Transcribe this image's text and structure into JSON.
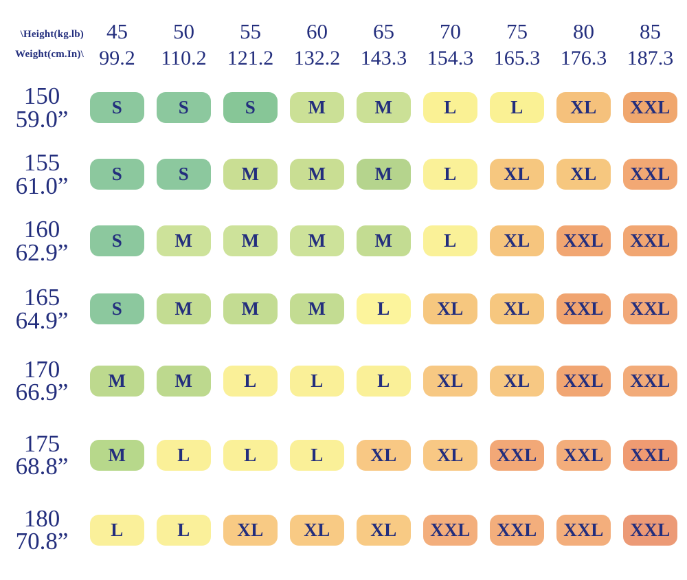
{
  "corner": {
    "line1": "\\Height(kg.lb)",
    "line2": "Weight(cm.In)\\"
  },
  "columns": [
    {
      "kg": "45",
      "lb": "99.2"
    },
    {
      "kg": "50",
      "lb": "110.2"
    },
    {
      "kg": "55",
      "lb": "121.2"
    },
    {
      "kg": "60",
      "lb": "132.2"
    },
    {
      "kg": "65",
      "lb": "143.3"
    },
    {
      "kg": "70",
      "lb": "154.3"
    },
    {
      "kg": "75",
      "lb": "165.3"
    },
    {
      "kg": "80",
      "lb": "176.3"
    },
    {
      "kg": "85",
      "lb": "187.3"
    }
  ],
  "rows": [
    {
      "cm": "150",
      "inch": "59.0”",
      "cells": [
        {
          "label": "S",
          "color": "#8cc89e"
        },
        {
          "label": "S",
          "color": "#8cc89e"
        },
        {
          "label": "S",
          "color": "#87c697"
        },
        {
          "label": "M",
          "color": "#cbe096"
        },
        {
          "label": "M",
          "color": "#cbe096"
        },
        {
          "label": "L",
          "color": "#faf194"
        },
        {
          "label": "L",
          "color": "#faf194"
        },
        {
          "label": "XL",
          "color": "#f5c17c"
        },
        {
          "label": "XXL",
          "color": "#f0a76e"
        }
      ]
    },
    {
      "cm": "155",
      "inch": "61.0”",
      "cells": [
        {
          "label": "S",
          "color": "#8cc89e"
        },
        {
          "label": "S",
          "color": "#8cc89e"
        },
        {
          "label": "M",
          "color": "#c9de93"
        },
        {
          "label": "M",
          "color": "#c9de93"
        },
        {
          "label": "M",
          "color": "#b5d48d"
        },
        {
          "label": "L",
          "color": "#faf198"
        },
        {
          "label": "XL",
          "color": "#f6c77f"
        },
        {
          "label": "XL",
          "color": "#f6c77f"
        },
        {
          "label": "XXL",
          "color": "#f2a874"
        }
      ]
    },
    {
      "cm": "160",
      "inch": "62.9”",
      "cells": [
        {
          "label": "S",
          "color": "#8cc89e"
        },
        {
          "label": "M",
          "color": "#cde29a"
        },
        {
          "label": "M",
          "color": "#cde29a"
        },
        {
          "label": "M",
          "color": "#cde29a"
        },
        {
          "label": "M",
          "color": "#c3dc92"
        },
        {
          "label": "L",
          "color": "#faf198"
        },
        {
          "label": "XL",
          "color": "#f6c57e"
        },
        {
          "label": "XXL",
          "color": "#f1a672"
        },
        {
          "label": "XXL",
          "color": "#f1a672"
        }
      ]
    },
    {
      "cm": "165",
      "inch": "64.9”",
      "cells": [
        {
          "label": "S",
          "color": "#8cc89e"
        },
        {
          "label": "M",
          "color": "#c3dc92"
        },
        {
          "label": "M",
          "color": "#c3dc92"
        },
        {
          "label": "M",
          "color": "#c3dc92"
        },
        {
          "label": "L",
          "color": "#fcf49c"
        },
        {
          "label": "XL",
          "color": "#f6c77f"
        },
        {
          "label": "XL",
          "color": "#f6c77f"
        },
        {
          "label": "XXL",
          "color": "#f0a470"
        },
        {
          "label": "XXL",
          "color": "#f2a979"
        }
      ]
    },
    {
      "cm": "170",
      "inch": "66.9”",
      "cells": [
        {
          "label": "M",
          "color": "#bdd98e"
        },
        {
          "label": "M",
          "color": "#bdd98e"
        },
        {
          "label": "L",
          "color": "#faf098"
        },
        {
          "label": "L",
          "color": "#faf098"
        },
        {
          "label": "L",
          "color": "#faf098"
        },
        {
          "label": "XL",
          "color": "#f7c883"
        },
        {
          "label": "XL",
          "color": "#f7c883"
        },
        {
          "label": "XXL",
          "color": "#f1a673"
        },
        {
          "label": "XXL",
          "color": "#f2ab79"
        }
      ]
    },
    {
      "cm": "175",
      "inch": "68.8”",
      "cells": [
        {
          "label": "M",
          "color": "#b7d88b"
        },
        {
          "label": "L",
          "color": "#faf098"
        },
        {
          "label": "L",
          "color": "#faf098"
        },
        {
          "label": "L",
          "color": "#faf098"
        },
        {
          "label": "XL",
          "color": "#f8c884"
        },
        {
          "label": "XL",
          "color": "#f8c884"
        },
        {
          "label": "XXL",
          "color": "#f2a877"
        },
        {
          "label": "XXL",
          "color": "#f3ad7b"
        },
        {
          "label": "XXL",
          "color": "#ef9b72"
        }
      ]
    },
    {
      "cm": "180",
      "inch": "70.8”",
      "cells": [
        {
          "label": "L",
          "color": "#faf09a"
        },
        {
          "label": "L",
          "color": "#faf09a"
        },
        {
          "label": "XL",
          "color": "#f8ca84"
        },
        {
          "label": "XL",
          "color": "#f8ca84"
        },
        {
          "label": "XL",
          "color": "#f8ca84"
        },
        {
          "label": "XXL",
          "color": "#f3ae7c"
        },
        {
          "label": "XXL",
          "color": "#f3ae7c"
        },
        {
          "label": "XXL",
          "color": "#f3ae7c"
        },
        {
          "label": "XXL",
          "color": "#ec9a76"
        }
      ]
    }
  ],
  "colors": {
    "text": "#232e7d",
    "background": "#ffffff"
  },
  "chart_data": {
    "type": "heatmap",
    "corner_label_top": "\\Height(kg.lb)",
    "corner_label_bottom": "Weight(cm.In)\\",
    "col_header_primary_kg": [
      45,
      50,
      55,
      60,
      65,
      70,
      75,
      80,
      85
    ],
    "col_header_secondary_lb": [
      99.2,
      110.2,
      121.2,
      132.2,
      143.3,
      154.3,
      165.3,
      176.3,
      187.3
    ],
    "row_header_primary_cm": [
      150,
      155,
      160,
      165,
      170,
      175,
      180
    ],
    "row_header_secondary_in": [
      "59.0”",
      "61.0”",
      "62.9”",
      "64.9”",
      "66.9”",
      "68.8”",
      "70.8”"
    ],
    "values": [
      [
        "S",
        "S",
        "S",
        "M",
        "M",
        "L",
        "L",
        "XL",
        "XXL"
      ],
      [
        "S",
        "S",
        "M",
        "M",
        "M",
        "L",
        "XL",
        "XL",
        "XXL"
      ],
      [
        "S",
        "M",
        "M",
        "M",
        "M",
        "L",
        "XL",
        "XXL",
        "XXL"
      ],
      [
        "S",
        "M",
        "M",
        "M",
        "L",
        "XL",
        "XL",
        "XXL",
        "XXL"
      ],
      [
        "M",
        "M",
        "L",
        "L",
        "L",
        "XL",
        "XL",
        "XXL",
        "XXL"
      ],
      [
        "M",
        "L",
        "L",
        "L",
        "XL",
        "XL",
        "XXL",
        "XXL",
        "XXL"
      ],
      [
        "L",
        "L",
        "XL",
        "XL",
        "XL",
        "XXL",
        "XXL",
        "XXL",
        "XXL"
      ]
    ],
    "legend": "off",
    "grid": "off",
    "palette": {
      "S": "#8cc89e",
      "M": "#c3dc92",
      "L": "#faf198",
      "XL": "#f7c781",
      "XXL": "#f2a977",
      "XXL_max": "#ec9a76"
    }
  }
}
